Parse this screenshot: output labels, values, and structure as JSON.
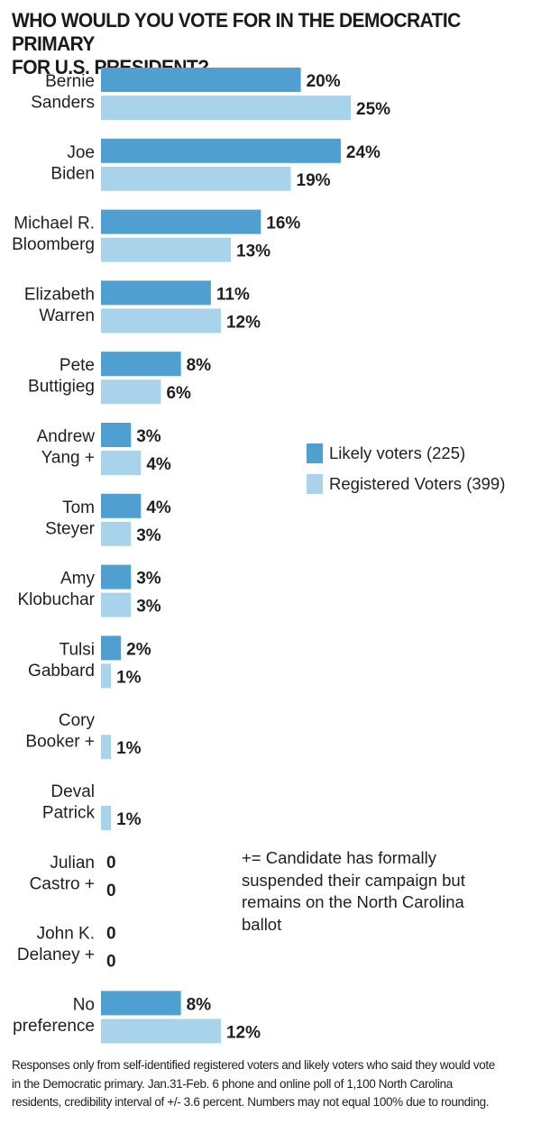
{
  "chart_data": {
    "type": "bar",
    "orientation": "horizontal",
    "title": "WHO WOULD YOU VOTE FOR IN THE DEMOCRATIC PRIMARY FOR U.S. PRESIDENT?",
    "title_lines": [
      "WHO WOULD YOU VOTE FOR IN THE DEMOCRATIC PRIMARY",
      "FOR U.S. PRESIDENT?"
    ],
    "categories": [
      {
        "lines": [
          "Bernie",
          "Sanders"
        ]
      },
      {
        "lines": [
          "Joe",
          "Biden"
        ]
      },
      {
        "lines": [
          "Michael R.",
          "Bloomberg"
        ]
      },
      {
        "lines": [
          "Elizabeth",
          "Warren"
        ]
      },
      {
        "lines": [
          "Pete",
          "Buttigieg"
        ]
      },
      {
        "lines": [
          "Andrew",
          "Yang +"
        ]
      },
      {
        "lines": [
          "Tom",
          "Steyer"
        ]
      },
      {
        "lines": [
          "Amy",
          "Klobuchar"
        ]
      },
      {
        "lines": [
          "Tulsi",
          "Gabbard"
        ]
      },
      {
        "lines": [
          "Cory",
          "Booker +"
        ]
      },
      {
        "lines": [
          "Deval",
          "Patrick"
        ]
      },
      {
        "lines": [
          "Julian",
          "Castro +"
        ]
      },
      {
        "lines": [
          "John K.",
          "Delaney +"
        ]
      },
      {
        "lines": [
          "No",
          "preference"
        ]
      }
    ],
    "series": [
      {
        "name": "Likely voters (225)",
        "color": "#4f9fd0",
        "values": [
          20,
          24,
          16,
          11,
          8,
          3,
          4,
          3,
          2,
          null,
          null,
          0,
          0,
          8
        ],
        "labels": [
          "20%",
          "24%",
          "16%",
          "11%",
          "8%",
          "3%",
          "4%",
          "3%",
          "2%",
          "",
          "",
          "0",
          "0",
          "8%"
        ]
      },
      {
        "name": "Registered Voters (399)",
        "color": "#a8d3ea",
        "values": [
          25,
          19,
          13,
          12,
          6,
          4,
          3,
          3,
          1,
          1,
          1,
          0,
          0,
          12
        ],
        "labels": [
          "25%",
          "19%",
          "13%",
          "12%",
          "6%",
          "4%",
          "3%",
          "3%",
          "1%",
          "1%",
          "1%",
          "0",
          "0",
          "12%"
        ]
      }
    ],
    "xlim": [
      0,
      25
    ],
    "xlabel": "",
    "ylabel": "",
    "grid": false,
    "legend_position": "right"
  },
  "note": "+= Candidate has formally suspended their campaign but remains on the North Carolina ballot",
  "note_lines": [
    "+= Candidate has formally",
    "suspended their campaign but",
    "remains on the North Carolina",
    "ballot"
  ],
  "footnote": "Responses only from self-identified registered voters and likely voters who said they would vote in the Democratic primary. Jan.31-Feb. 6 phone and online poll of 1,100 North Carolina residents, credibility interval of +/- 3.6 percent. Numbers may not equal 100% due to rounding.",
  "footnote_lines": [
    "Responses only from self-identified registered voters and likely voters who said they would vote",
    "in the Democratic primary. Jan.31-Feb. 6 phone and online poll of 1,100 North Carolina",
    "residents, credibility interval of +/- 3.6 percent. Numbers may not equal 100% due to rounding."
  ]
}
